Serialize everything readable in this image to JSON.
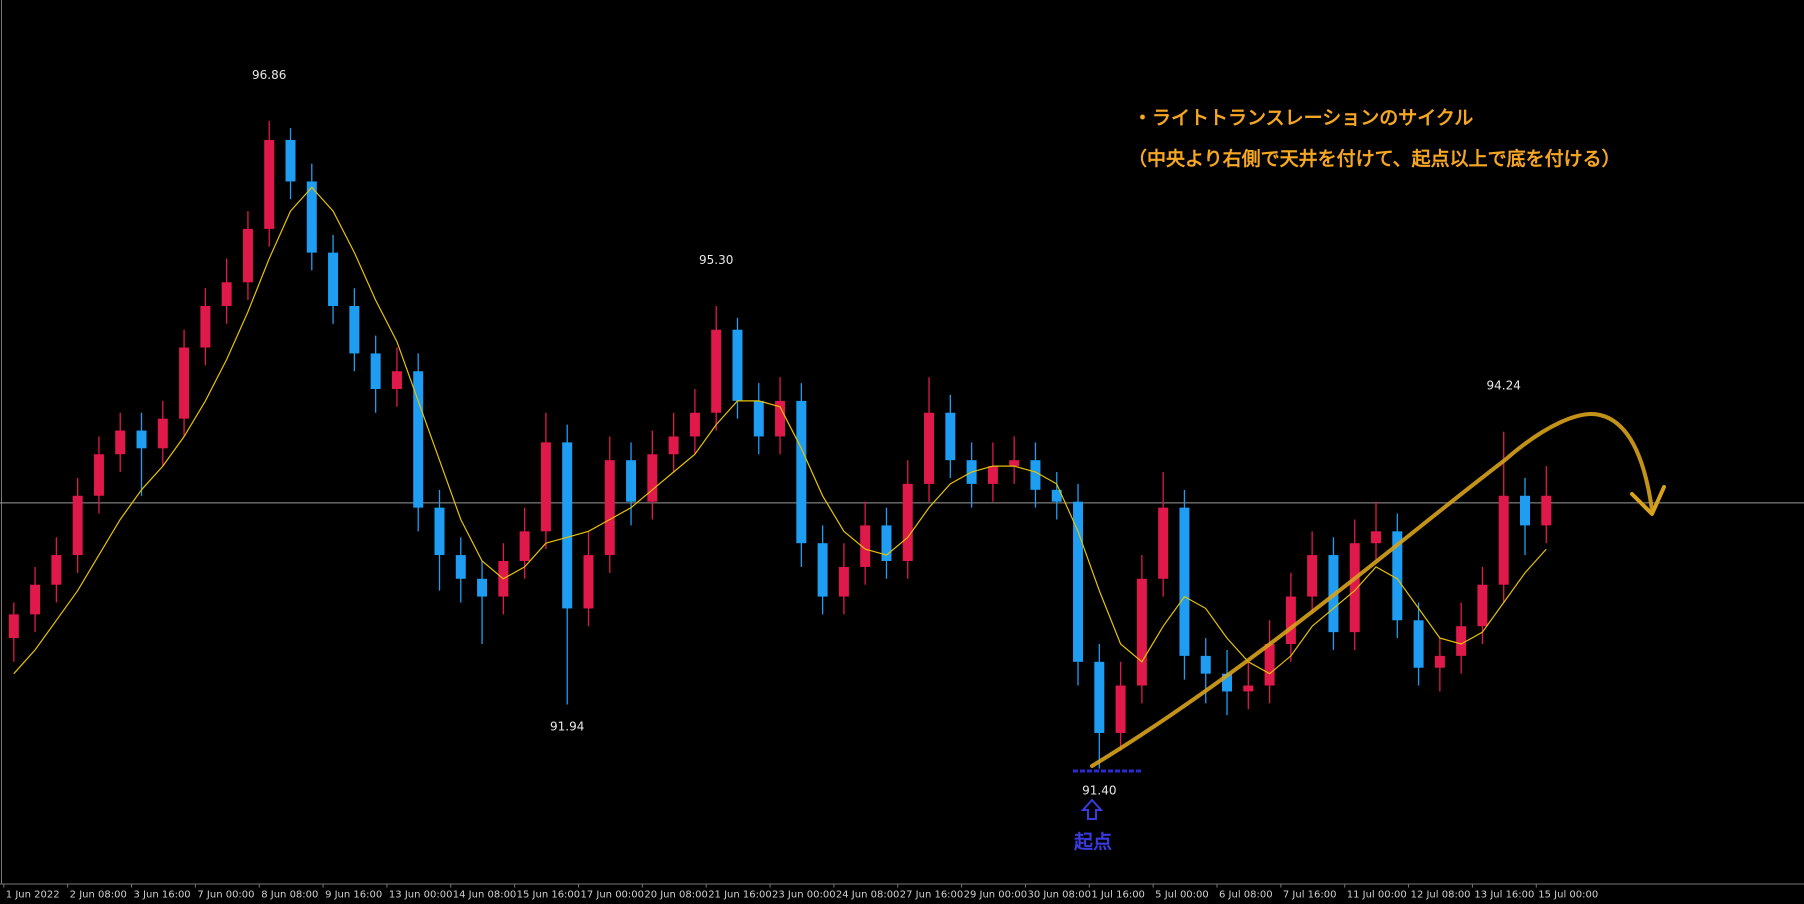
{
  "chart_data": {
    "type": "candlestick",
    "up_color": "#e0194b",
    "down_color": "#1e9df2",
    "ylim": [
      90.43,
      97.88
    ],
    "hline": 93.64,
    "hline_color": "#9a9a9a",
    "categories": [
      "1 Jun 2022",
      null,
      null,
      "2 Jun 08:00",
      null,
      null,
      "3 Jun 16:00",
      null,
      null,
      "7 Jun 00:00",
      null,
      null,
      "8 Jun 08:00",
      null,
      null,
      "9 Jun 16:00",
      null,
      null,
      "13 Jun 00:00",
      null,
      null,
      "14 Jun 08:00",
      null,
      null,
      "15 Jun 16:00",
      null,
      null,
      "17 Jun 00:00",
      null,
      null,
      "20 Jun 08:00",
      null,
      null,
      "21 Jun 16:00",
      null,
      null,
      "23 Jun 00:00",
      null,
      null,
      "24 Jun 08:00",
      null,
      null,
      "27 Jun 16:00",
      null,
      null,
      "29 Jun 00:00",
      null,
      null,
      "30 Jun 08:00",
      null,
      null,
      "1 Jul 16:00",
      null,
      null,
      "5 Jul 00:00",
      null,
      null,
      "6 Jul 08:00",
      null,
      null,
      "7 Jul 16:00",
      null,
      null,
      "11 Jul 00:00",
      null,
      null,
      "12 Jul 08:00",
      null,
      null,
      "13 Jul 16:00",
      null,
      null,
      "15 Jul 00:00"
    ],
    "open": [
      92.5,
      92.7,
      92.95,
      93.2,
      93.7,
      94.05,
      94.25,
      94.1,
      94.35,
      94.95,
      95.3,
      95.5,
      95.95,
      96.7,
      96.35,
      95.75,
      95.3,
      94.9,
      94.6,
      94.75,
      93.6,
      93.2,
      93.0,
      92.85,
      93.15,
      93.4,
      94.15,
      92.75,
      93.2,
      94.0,
      93.65,
      94.05,
      94.2,
      94.4,
      95.1,
      94.5,
      94.2,
      94.5,
      93.3,
      92.85,
      93.1,
      93.45,
      93.15,
      93.8,
      94.4,
      94.0,
      93.8,
      93.95,
      94.0,
      93.75,
      93.65,
      92.3,
      91.7,
      92.1,
      93.0,
      93.6,
      92.35,
      92.2,
      92.05,
      92.1,
      92.45,
      92.85,
      93.2,
      92.55,
      93.3,
      93.4,
      92.65,
      92.25,
      92.35,
      92.6,
      92.95,
      93.7,
      93.45
    ],
    "high": [
      92.8,
      93.1,
      93.35,
      93.85,
      94.2,
      94.4,
      94.4,
      94.5,
      95.1,
      95.45,
      95.7,
      96.1,
      96.86,
      96.8,
      96.5,
      95.9,
      95.45,
      95.05,
      94.95,
      94.9,
      93.75,
      93.35,
      93.15,
      93.3,
      93.6,
      94.4,
      94.3,
      93.4,
      94.2,
      94.15,
      94.25,
      94.4,
      94.6,
      95.3,
      95.2,
      94.65,
      94.7,
      94.65,
      93.45,
      93.3,
      93.65,
      93.6,
      94.0,
      94.7,
      94.55,
      94.15,
      94.15,
      94.2,
      94.15,
      93.9,
      93.8,
      92.45,
      92.3,
      93.2,
      93.9,
      93.75,
      92.5,
      92.4,
      92.3,
      92.65,
      93.05,
      93.4,
      93.35,
      93.5,
      93.65,
      93.55,
      92.8,
      92.5,
      92.8,
      93.1,
      94.24,
      93.85,
      93.95
    ],
    "low": [
      92.3,
      92.55,
      92.8,
      93.05,
      93.55,
      93.9,
      93.7,
      93.95,
      94.2,
      94.8,
      95.15,
      95.35,
      95.8,
      96.2,
      95.6,
      95.15,
      94.75,
      94.4,
      94.45,
      93.4,
      92.9,
      92.8,
      92.45,
      92.7,
      93.0,
      93.25,
      91.94,
      92.6,
      93.05,
      93.45,
      93.5,
      93.9,
      94.05,
      94.25,
      94.35,
      94.05,
      94.05,
      93.1,
      92.7,
      92.7,
      92.95,
      93.0,
      93.0,
      93.65,
      93.85,
      93.6,
      93.65,
      93.8,
      93.6,
      93.5,
      92.1,
      91.4,
      91.55,
      91.95,
      92.85,
      92.15,
      91.95,
      91.85,
      91.9,
      91.95,
      92.3,
      92.7,
      92.4,
      92.4,
      93.15,
      92.5,
      92.1,
      92.05,
      92.2,
      92.45,
      92.8,
      93.2,
      93.3
    ],
    "close": [
      92.7,
      92.95,
      93.2,
      93.7,
      94.05,
      94.25,
      94.1,
      94.35,
      94.95,
      95.3,
      95.5,
      95.95,
      96.7,
      96.35,
      95.75,
      95.3,
      94.9,
      94.6,
      94.75,
      93.6,
      93.2,
      93.0,
      92.85,
      93.15,
      93.4,
      94.15,
      92.75,
      93.2,
      94.0,
      93.65,
      94.05,
      94.2,
      94.4,
      95.1,
      94.5,
      94.2,
      94.5,
      93.3,
      92.85,
      93.1,
      93.45,
      93.15,
      93.8,
      94.4,
      94.0,
      93.8,
      93.95,
      94.0,
      93.75,
      93.65,
      92.3,
      91.7,
      92.1,
      93.0,
      93.6,
      92.35,
      92.2,
      92.05,
      92.1,
      92.45,
      92.85,
      93.2,
      92.55,
      93.3,
      93.4,
      92.65,
      92.25,
      92.35,
      92.6,
      92.95,
      93.7,
      93.45,
      93.7
    ],
    "ma": {
      "color": "#e6c200",
      "values": [
        92.2,
        92.4,
        92.65,
        92.9,
        93.2,
        93.5,
        93.75,
        93.95,
        94.2,
        94.5,
        94.85,
        95.25,
        95.7,
        96.1,
        96.3,
        96.1,
        95.75,
        95.35,
        95.0,
        94.5,
        94.0,
        93.5,
        93.15,
        93.0,
        93.1,
        93.3,
        93.35,
        93.4,
        93.5,
        93.6,
        93.75,
        93.9,
        94.05,
        94.3,
        94.5,
        94.5,
        94.45,
        94.1,
        93.7,
        93.4,
        93.25,
        93.2,
        93.35,
        93.6,
        93.8,
        93.9,
        93.95,
        93.95,
        93.9,
        93.8,
        93.4,
        92.9,
        92.45,
        92.3,
        92.6,
        92.85,
        92.75,
        92.5,
        92.3,
        92.2,
        92.35,
        92.6,
        92.75,
        92.9,
        93.1,
        93.0,
        92.75,
        92.5,
        92.45,
        92.55,
        92.8,
        93.05,
        93.25
      ]
    },
    "annotations": [
      {
        "value": 96.86,
        "label": "96.86"
      },
      {
        "value": 95.3,
        "label": "95.30"
      },
      {
        "value": 91.94,
        "label": "91.94"
      },
      {
        "value": 91.4,
        "label": "91.40"
      },
      {
        "value": 94.24,
        "label": "94.24"
      }
    ],
    "notes": [
      "・ライトトランスレーションのサイクル",
      "（中央より右側で天井を付けて、起点以上で底を付ける）"
    ],
    "origin_label": "起点"
  }
}
